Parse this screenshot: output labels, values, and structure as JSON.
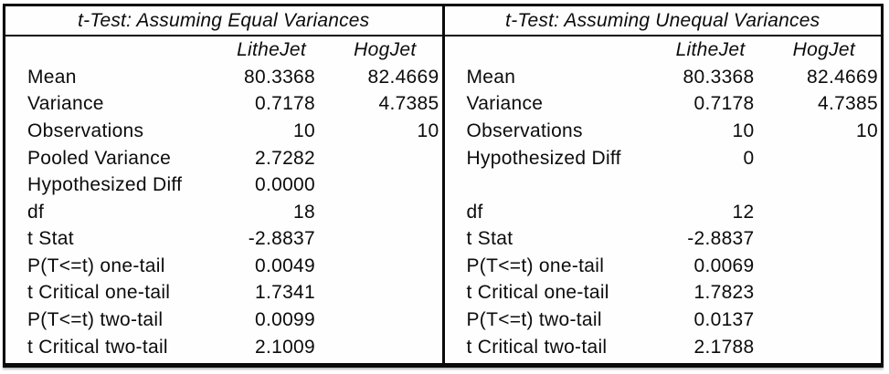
{
  "colors": {
    "border": "#0a0a0a",
    "text": "#0c0c0c",
    "background": "#ffffff"
  },
  "tables": [
    {
      "title": "t-Test: Assuming Equal Variances",
      "col1": "LitheJet",
      "col2": "HogJet",
      "rows": [
        {
          "label": "Mean",
          "v1": "80.3368",
          "v2": "82.4669"
        },
        {
          "label": "Variance",
          "v1": "0.7178",
          "v2": "4.7385"
        },
        {
          "label": "Observations",
          "v1": "10",
          "v2": "10"
        },
        {
          "label": "Pooled Variance",
          "v1": "2.7282",
          "v2": ""
        },
        {
          "label": "Hypothesized Diff",
          "v1": "0.0000",
          "v2": ""
        },
        {
          "label": "df",
          "v1": "18",
          "v2": ""
        },
        {
          "label": "t Stat",
          "v1": "-2.8837",
          "v2": ""
        },
        {
          "label": "P(T<=t) one-tail",
          "v1": "0.0049",
          "v2": ""
        },
        {
          "label": "t Critical one-tail",
          "v1": "1.7341",
          "v2": ""
        },
        {
          "label": "P(T<=t) two-tail",
          "v1": "0.0099",
          "v2": ""
        },
        {
          "label": "t Critical two-tail",
          "v1": "2.1009",
          "v2": ""
        }
      ]
    },
    {
      "title": "t-Test: Assuming Unequal Variances",
      "col1": "LitheJet",
      "col2": "HogJet",
      "rows": [
        {
          "label": "Mean",
          "v1": "80.3368",
          "v2": "82.4669"
        },
        {
          "label": "Variance",
          "v1": "0.7178",
          "v2": "4.7385"
        },
        {
          "label": "Observations",
          "v1": "10",
          "v2": "10"
        },
        {
          "label": "Hypothesized Diff",
          "v1": "0",
          "v2": ""
        },
        {
          "label": "",
          "v1": "",
          "v2": ""
        },
        {
          "label": "df",
          "v1": "12",
          "v2": ""
        },
        {
          "label": "t Stat",
          "v1": "-2.8837",
          "v2": ""
        },
        {
          "label": "P(T<=t) one-tail",
          "v1": "0.0069",
          "v2": ""
        },
        {
          "label": "t Critical one-tail",
          "v1": "1.7823",
          "v2": ""
        },
        {
          "label": "P(T<=t) two-tail",
          "v1": "0.0137",
          "v2": ""
        },
        {
          "label": "t Critical two-tail",
          "v1": "2.1788",
          "v2": ""
        }
      ]
    }
  ]
}
